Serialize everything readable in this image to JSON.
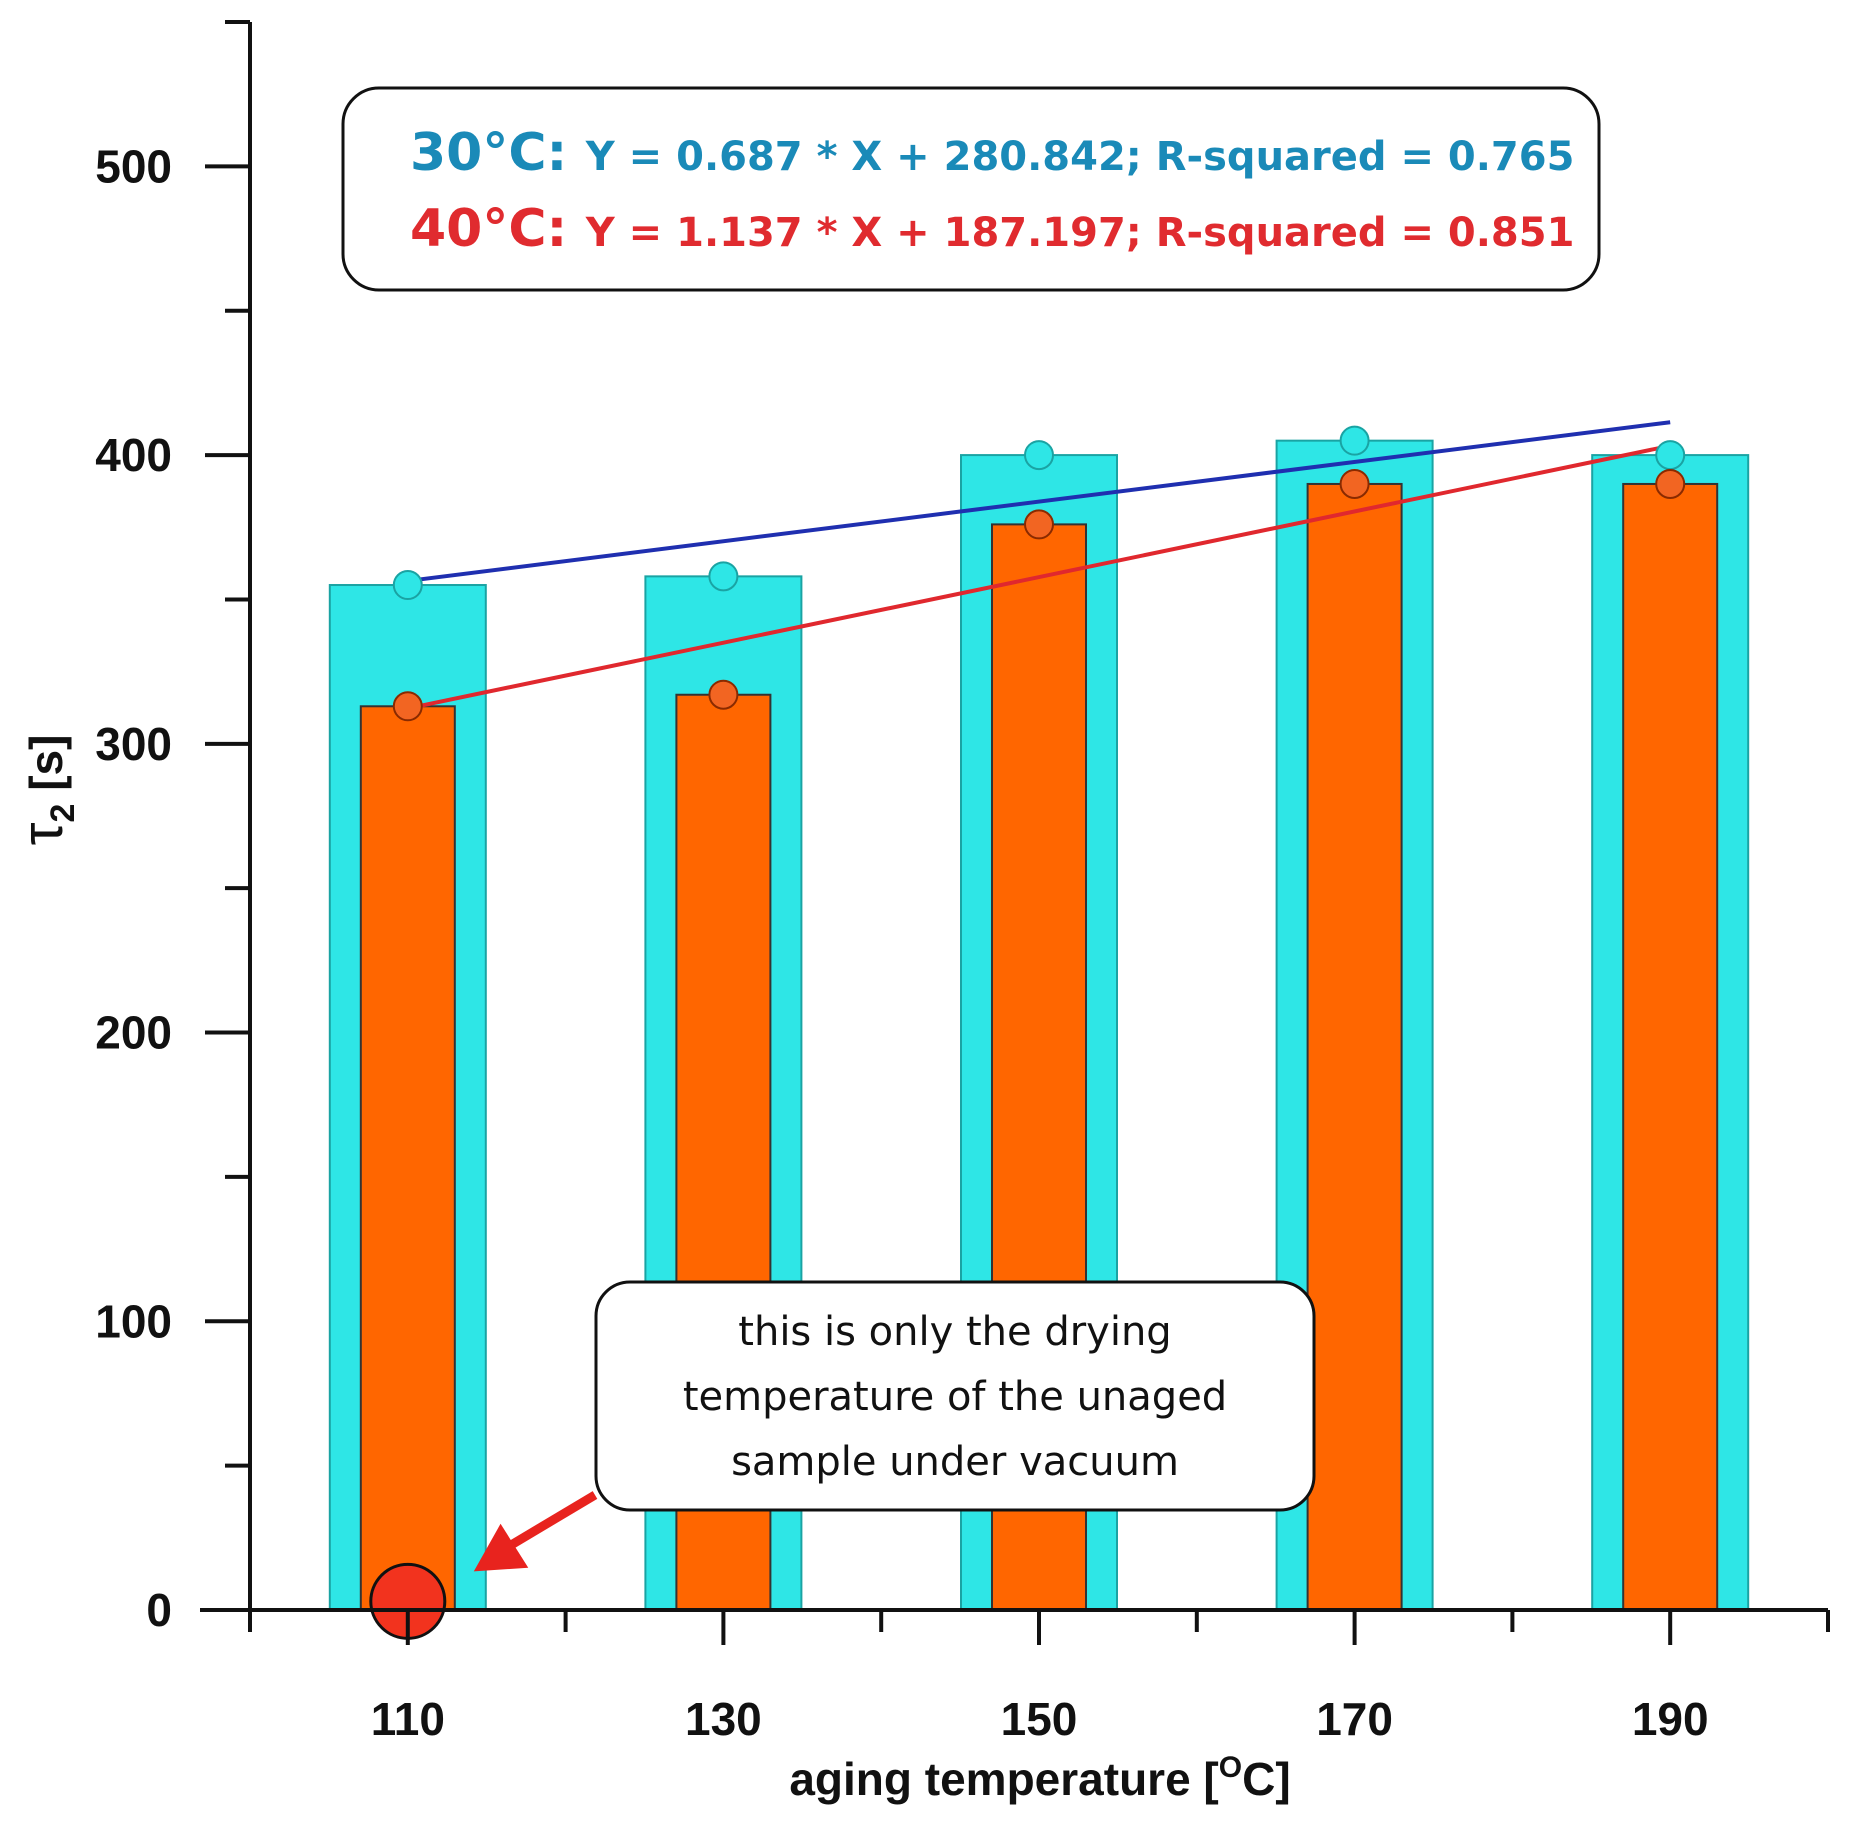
{
  "chart_data": {
    "type": "bar",
    "categories": [
      "110",
      "130",
      "150",
      "170",
      "190"
    ],
    "x_values": [
      110,
      130,
      150,
      170,
      190
    ],
    "series": [
      {
        "name": "30°C",
        "color": "#2ee6e6",
        "marker_color": "#2ee6e6",
        "values": [
          355,
          358,
          400,
          405,
          400
        ]
      },
      {
        "name": "40°C",
        "color": "#ff6600",
        "marker_color": "#f26522",
        "values": [
          313,
          317,
          376,
          390,
          390
        ]
      }
    ],
    "fits": [
      {
        "series": "30°C",
        "label": "30°C:",
        "equation": "Y = 0.687 * X + 280.842; R-squared = 0.765",
        "slope": 0.687,
        "intercept": 280.842,
        "x_range": [
          110,
          190
        ],
        "line_color": "#1f2fb0",
        "text_color": "#1a8ab8"
      },
      {
        "series": "40°C",
        "label": "40°C:",
        "equation": "Y = 1.137 * X + 187.197; R-squared = 0.851",
        "slope": 1.137,
        "intercept": 187.197,
        "x_range": [
          110,
          190
        ],
        "line_color": "#e0282e",
        "text_color": "#e02b2f"
      }
    ],
    "special_point": {
      "x": 110,
      "y": 3,
      "color": "#f2331e"
    },
    "annotation": {
      "lines": [
        "this is only the drying",
        "temperature of the unaged",
        "sample under vacuum"
      ],
      "arrow_color": "#e8231e"
    },
    "title": "",
    "xlabel": "aging temperature [",
    "xlabel_sup": "O",
    "xlabel_end": "C]",
    "ylabel": "τ",
    "ylabel_sub": "2",
    "ylabel_end": " [s]",
    "xlim": [
      100,
      200
    ],
    "ylim": [
      0,
      550
    ],
    "y_ticks": [
      0,
      100,
      200,
      300,
      400,
      500
    ],
    "y_minor_ticks": [
      50,
      150,
      250,
      350,
      450,
      550
    ],
    "x_minor_ticks": [
      100,
      120,
      140,
      160,
      180,
      200
    ],
    "grid": false
  }
}
